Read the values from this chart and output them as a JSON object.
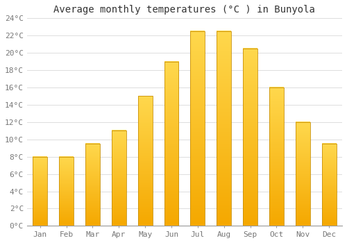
{
  "months": [
    "Jan",
    "Feb",
    "Mar",
    "Apr",
    "May",
    "Jun",
    "Jul",
    "Aug",
    "Sep",
    "Oct",
    "Nov",
    "Dec"
  ],
  "temperatures": [
    8,
    8,
    9.5,
    11,
    15,
    19,
    22.5,
    22.5,
    20.5,
    16,
    12,
    9.5
  ],
  "bar_color_bottom": "#F5A800",
  "bar_color_top": "#FFD84D",
  "bar_edge_color": "#C8900A",
  "title": "Average monthly temperatures (°C ) in Bunyola",
  "ylim": [
    0,
    24
  ],
  "yticks": [
    0,
    2,
    4,
    6,
    8,
    10,
    12,
    14,
    16,
    18,
    20,
    22,
    24
  ],
  "ytick_labels": [
    "0°C",
    "2°C",
    "4°C",
    "6°C",
    "8°C",
    "10°C",
    "12°C",
    "14°C",
    "16°C",
    "18°C",
    "20°C",
    "22°C",
    "24°C"
  ],
  "background_color": "#FFFFFF",
  "grid_color": "#DDDDDD",
  "title_fontsize": 10,
  "tick_fontsize": 8,
  "bar_width": 0.55
}
